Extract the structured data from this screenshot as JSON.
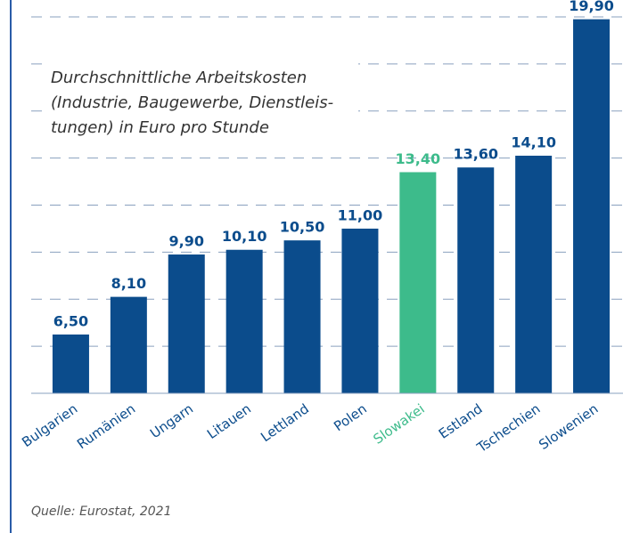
{
  "chart_data": {
    "type": "bar",
    "title": [
      "Durchschnittliche Arbeitskosten",
      "(Industrie, Baugewerbe, Dienstleis-",
      "tungen) in Euro pro Stunde"
    ],
    "categories": [
      "Bulgarien",
      "Rumänien",
      "Ungarn",
      "Litauen",
      "Lettland",
      "Polen",
      "Slowakei",
      "Estland",
      "Tschechien",
      "Slowenien"
    ],
    "values": [
      6.5,
      8.1,
      9.9,
      10.1,
      10.5,
      11.0,
      13.4,
      13.6,
      14.1,
      19.9
    ],
    "value_labels": [
      "6,50",
      "8,10",
      "9,90",
      "10,10",
      "10,50",
      "11,00",
      "13,40",
      "13,60",
      "14,10",
      "19,90"
    ],
    "colors": [
      "#0b4c8c",
      "#0b4c8c",
      "#0b4c8c",
      "#0b4c8c",
      "#0b4c8c",
      "#0b4c8c",
      "#3dbb8b",
      "#0b4c8c",
      "#0b4c8c",
      "#0b4c8c"
    ],
    "ylim": [
      4,
      20
    ],
    "yticks": [
      6,
      8,
      10,
      12,
      14,
      16,
      18,
      20
    ],
    "grid": true,
    "source": "Quelle: Eurostat, 2021"
  }
}
